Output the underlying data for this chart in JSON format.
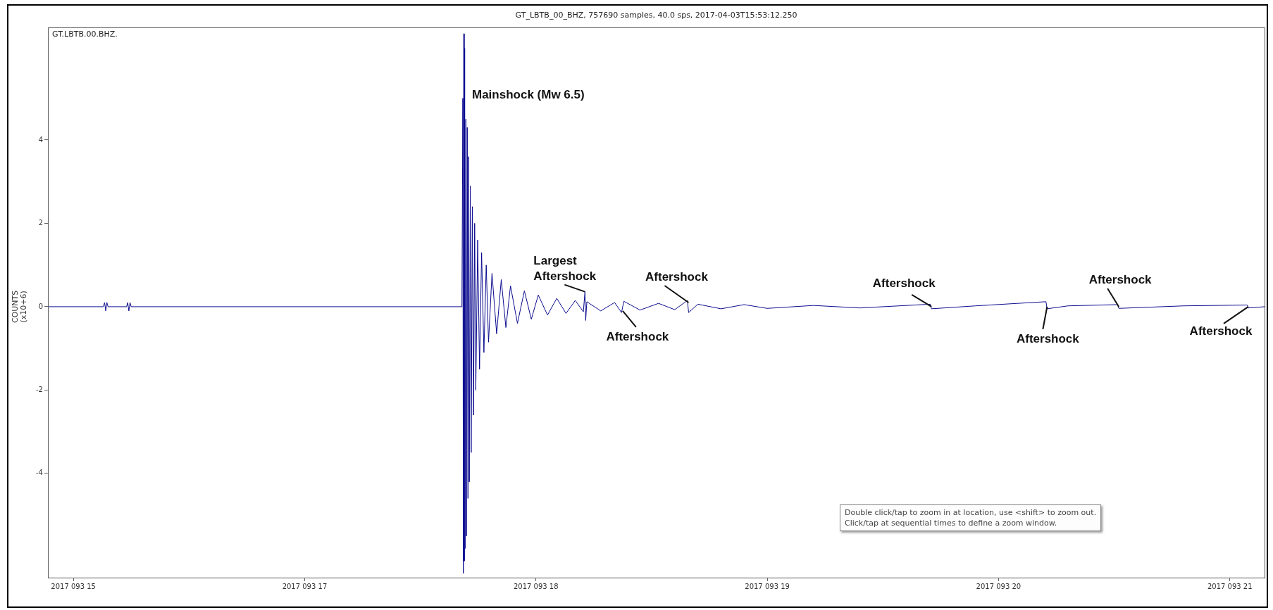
{
  "chart_data": {
    "type": "line",
    "title": "GT_LBTB_00_BHZ, 757690 samples, 40.0 sps, 2017-04-03T15:53:12.250",
    "ylabel": "COUNTS (x10+6)",
    "xlim": [
      "2017-04-03T15:53:24",
      "2017-04-03T21:09:00"
    ],
    "xticks": [
      {
        "value": "2017-04-03T16:00",
        "label": "2017 093 15"
      },
      {
        "value": "2017-04-03T17:00",
        "label": "2017 093 17"
      },
      {
        "value": "2017-04-03T18:00",
        "label": "2017 093 18"
      },
      {
        "value": "2017-04-03T19:00",
        "label": "2017 093 19"
      },
      {
        "value": "2017-04-03T20:00",
        "label": "2017 093 20"
      },
      {
        "value": "2017-04-03T21:00",
        "label": "2017 093 21"
      }
    ],
    "ylim": [
      -6.5,
      6.7
    ],
    "yticks": [
      -4,
      -2,
      0,
      2,
      4
    ],
    "series": [
      {
        "color": "#0b0b8f",
        "x": [
          "2017-04-03T15:53:24",
          "2017-04-03T16:07:48",
          "2017-04-03T16:08:06",
          "2017-04-03T16:08:24",
          "2017-04-03T16:08:42",
          "2017-04-03T16:09:00",
          "2017-04-03T16:13:48",
          "2017-04-03T16:14:06",
          "2017-04-03T16:14:24",
          "2017-04-03T16:14:42",
          "2017-04-03T16:15:00",
          "2017-04-03T17:40:48",
          "2017-04-03T17:41:02",
          "2017-04-03T17:41:10",
          "2017-04-03T17:41:17",
          "2017-04-03T17:41:24",
          "2017-04-03T17:41:31",
          "2017-04-03T17:41:38",
          "2017-04-03T17:41:49",
          "2017-04-03T17:42:00",
          "2017-04-03T17:42:11",
          "2017-04-03T17:42:22",
          "2017-04-03T17:42:32",
          "2017-04-03T17:42:43",
          "2017-04-03T17:42:58",
          "2017-04-03T17:43:12",
          "2017-04-03T17:43:30",
          "2017-04-03T17:43:48",
          "2017-04-03T17:44:06",
          "2017-04-03T17:44:24",
          "2017-04-03T17:44:53",
          "2017-04-03T17:45:22",
          "2017-04-03T17:45:54",
          "2017-04-03T17:46:30",
          "2017-04-03T17:47:06",
          "2017-04-03T17:47:42",
          "2017-04-03T17:48:36",
          "2017-04-03T17:49:48",
          "2017-04-03T17:51:00",
          "2017-04-03T17:52:12",
          "2017-04-03T17:53:24",
          "2017-04-03T17:55:12",
          "2017-04-03T17:57:00",
          "2017-04-03T17:58:48",
          "2017-04-03T18:00:36",
          "2017-04-03T18:03:00",
          "2017-04-03T18:05:24",
          "2017-04-03T18:07:48",
          "2017-04-03T18:10:12",
          "2017-04-03T18:12:18",
          "2017-04-03T18:12:43",
          "2017-04-03T18:12:54",
          "2017-04-03T18:13:12",
          "2017-04-03T18:16:48",
          "2017-04-03T18:20:24",
          "2017-04-03T18:22:12",
          "2017-04-03T18:22:48",
          "2017-04-03T18:27:00",
          "2017-04-03T18:31:48",
          "2017-04-03T18:36:00",
          "2017-04-03T18:39:18",
          "2017-04-03T18:39:36",
          "2017-04-03T18:42:00",
          "2017-04-03T18:48:00",
          "2017-04-03T18:54:00",
          "2017-04-03T19:00:00",
          "2017-04-03T19:12:00",
          "2017-04-03T19:24:00",
          "2017-04-03T19:42:18",
          "2017-04-03T19:42:36",
          "2017-04-03T19:54:00",
          "2017-04-03T20:12:18",
          "2017-04-03T20:12:36",
          "2017-04-03T20:18:00",
          "2017-04-03T20:30:54",
          "2017-04-03T20:31:12",
          "2017-04-03T20:48:00",
          "2017-04-03T21:04:30",
          "2017-04-03T21:04:48",
          "2017-04-03T21:09:00"
        ],
        "values": [
          0,
          0,
          0.1,
          -0.1,
          0.1,
          0,
          0,
          0.1,
          -0.1,
          0.1,
          0,
          0,
          5.0,
          -6.4,
          6.55,
          -6.1,
          6.2,
          -5.8,
          4.5,
          -5.5,
          4.3,
          -4.6,
          3.6,
          -4.2,
          2.9,
          -3.5,
          2.4,
          -2.6,
          2.0,
          -2.0,
          1.6,
          -1.5,
          1.3,
          -1.1,
          1.0,
          -0.85,
          0.8,
          -0.65,
          0.65,
          -0.5,
          0.5,
          -0.4,
          0.38,
          -0.3,
          0.28,
          -0.2,
          0.2,
          -0.16,
          0.15,
          -0.12,
          0.36,
          -0.33,
          0.12,
          -0.1,
          0.1,
          -0.14,
          0.13,
          -0.08,
          0.08,
          -0.07,
          0.15,
          -0.14,
          0.06,
          -0.05,
          0.05,
          -0.04,
          0.03,
          -0.03,
          0.06,
          -0.05,
          0.02,
          0.12,
          -0.05,
          0.02,
          0.05,
          -0.04,
          0.02,
          0.04,
          -0.03,
          0
        ]
      }
    ],
    "annotations": [
      "GT.LBTB.00.BHZ.",
      "Mainshock (Mw 6.5)",
      "Double click/tap to zoom in at location, use <shift> to zoom out.",
      "Click/tap at sequential times to define a zoom window.",
      {
        "text": "Largest Aftershock",
        "x": "2017-04-03T18:12:43",
        "y": 0.36
      },
      {
        "text": "Aftershock",
        "x": "2017-04-03T18:22:30",
        "y": -0.1
      },
      {
        "text": "Aftershock",
        "x": "2017-04-03T18:39:36",
        "y": 0.1
      },
      {
        "text": "Aftershock",
        "x": "2017-04-03T19:42:36",
        "y": 0
      },
      {
        "text": "Aftershock",
        "x": "2017-04-03T20:12:36",
        "y": 0
      },
      {
        "text": "Aftershock",
        "x": "2017-04-03T20:31:12",
        "y": 0
      },
      {
        "text": "Aftershock",
        "x": "2017-04-03T21:04:48",
        "y": 0
      }
    ]
  }
}
